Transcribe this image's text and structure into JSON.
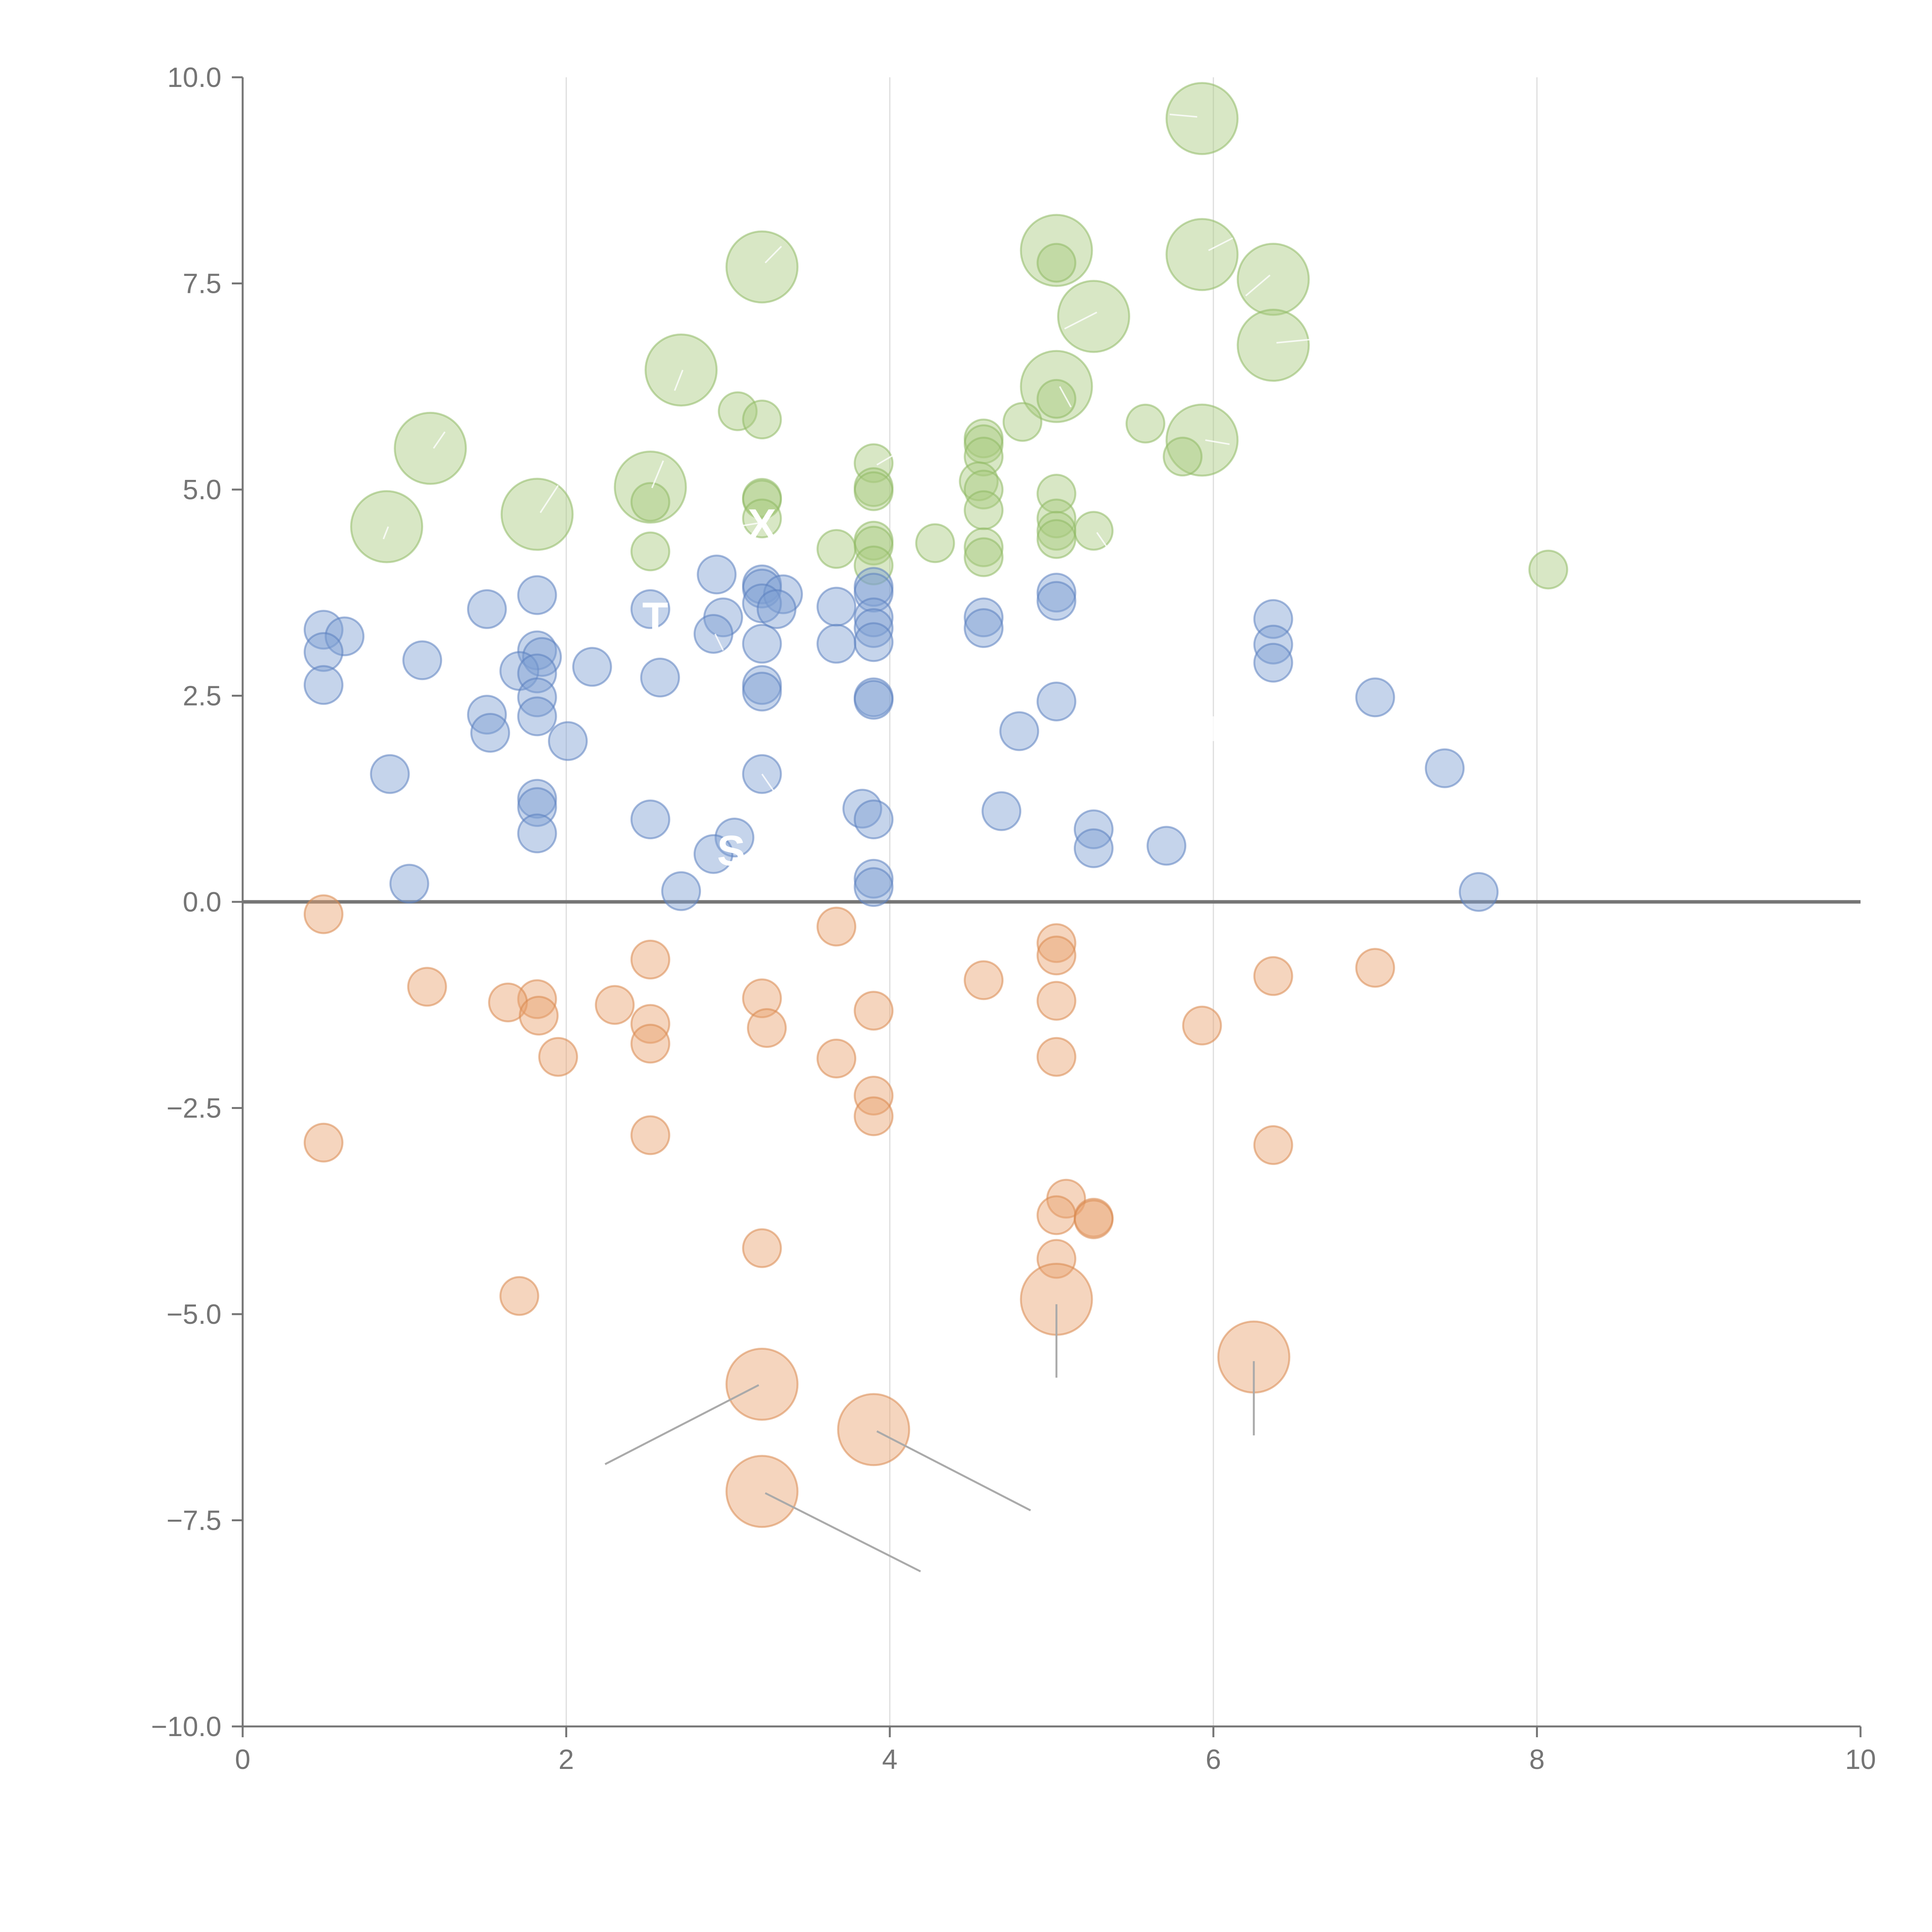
{
  "chart_data": {
    "type": "scatter",
    "title": "",
    "xlabel": "",
    "ylabel": "",
    "xlim": [
      0,
      10
    ],
    "ylim": [
      -10,
      10
    ],
    "x_ticks": [
      "0",
      "2",
      "4",
      "6",
      "8",
      "10"
    ],
    "y_ticks": [
      "−10.0",
      "−7.5",
      "−5.0",
      "−2.5",
      "0.0",
      "2.5",
      "5.0",
      "7.5",
      "10.0"
    ],
    "x_tick_values": [
      0,
      2,
      4,
      6,
      8,
      10
    ],
    "y_tick_values": [
      -10,
      -7.5,
      -5,
      -2.5,
      0,
      2.5,
      5,
      7.5,
      10
    ],
    "vertical_gridlines": [
      2,
      4,
      6,
      8
    ],
    "zero_line": 0,
    "series": [
      {
        "name": "green",
        "color": "#a8c97e",
        "stroke": "#8fb964",
        "points": [
          {
            "x": 5.93,
            "y": 9.5,
            "r": 3
          },
          {
            "x": 5.03,
            "y": 7.9,
            "r": 3
          },
          {
            "x": 5.93,
            "y": 7.85,
            "r": 3
          },
          {
            "x": 3.21,
            "y": 7.7,
            "r": 3
          },
          {
            "x": 6.37,
            "y": 7.55,
            "r": 3
          },
          {
            "x": 5.26,
            "y": 7.1,
            "r": 3
          },
          {
            "x": 6.37,
            "y": 6.75,
            "r": 3
          },
          {
            "x": 2.71,
            "y": 6.45,
            "r": 3
          },
          {
            "x": 5.03,
            "y": 6.25,
            "r": 3
          },
          {
            "x": 5.93,
            "y": 5.6,
            "r": 3
          },
          {
            "x": 1.16,
            "y": 5.5,
            "r": 3
          },
          {
            "x": 2.52,
            "y": 5.03,
            "r": 3
          },
          {
            "x": 1.82,
            "y": 4.7,
            "r": 3
          },
          {
            "x": 0.89,
            "y": 4.55,
            "r": 3
          },
          {
            "x": 5.03,
            "y": 7.75,
            "r": 1
          },
          {
            "x": 3.06,
            "y": 5.95,
            "r": 1
          },
          {
            "x": 3.21,
            "y": 5.85,
            "r": 1
          },
          {
            "x": 5.03,
            "y": 6.1,
            "r": 1
          },
          {
            "x": 5.58,
            "y": 5.8,
            "r": 1
          },
          {
            "x": 4.82,
            "y": 5.82,
            "r": 1
          },
          {
            "x": 4.58,
            "y": 5.62,
            "r": 1
          },
          {
            "x": 4.58,
            "y": 5.55,
            "r": 1
          },
          {
            "x": 4.58,
            "y": 5.4,
            "r": 1
          },
          {
            "x": 5.81,
            "y": 5.4,
            "r": 1
          },
          {
            "x": 3.9,
            "y": 5.32,
            "r": 1
          },
          {
            "x": 4.55,
            "y": 5.1,
            "r": 1
          },
          {
            "x": 3.9,
            "y": 5.03,
            "r": 1
          },
          {
            "x": 3.9,
            "y": 4.98,
            "r": 1
          },
          {
            "x": 4.58,
            "y": 5.0,
            "r": 1
          },
          {
            "x": 3.21,
            "y": 4.9,
            "r": 1
          },
          {
            "x": 3.21,
            "y": 4.88,
            "r": 1
          },
          {
            "x": 5.03,
            "y": 4.95,
            "r": 1
          },
          {
            "x": 2.52,
            "y": 4.85,
            "r": 1
          },
          {
            "x": 4.58,
            "y": 4.75,
            "r": 1
          },
          {
            "x": 3.21,
            "y": 4.65,
            "r": 1
          },
          {
            "x": 5.03,
            "y": 4.65,
            "r": 1
          },
          {
            "x": 5.03,
            "y": 4.5,
            "r": 1
          },
          {
            "x": 5.26,
            "y": 4.5,
            "r": 1
          },
          {
            "x": 5.03,
            "y": 4.4,
            "r": 1
          },
          {
            "x": 3.9,
            "y": 4.38,
            "r": 1
          },
          {
            "x": 3.9,
            "y": 4.32,
            "r": 1
          },
          {
            "x": 4.28,
            "y": 4.35,
            "r": 1
          },
          {
            "x": 3.67,
            "y": 4.28,
            "r": 1
          },
          {
            "x": 4.58,
            "y": 4.3,
            "r": 1
          },
          {
            "x": 2.52,
            "y": 4.25,
            "r": 1
          },
          {
            "x": 4.58,
            "y": 4.18,
            "r": 1
          },
          {
            "x": 3.9,
            "y": 4.08,
            "r": 1
          },
          {
            "x": 8.07,
            "y": 4.03,
            "r": 1
          }
        ]
      },
      {
        "name": "blue",
        "color": "#7e9fd2",
        "stroke": "#5b7fc0",
        "points": [
          {
            "x": 2.93,
            "y": 3.97,
            "r": 1
          },
          {
            "x": 3.21,
            "y": 3.85,
            "r": 1
          },
          {
            "x": 3.21,
            "y": 3.8,
            "r": 1
          },
          {
            "x": 3.9,
            "y": 3.82,
            "r": 1
          },
          {
            "x": 3.9,
            "y": 3.75,
            "r": 1
          },
          {
            "x": 5.03,
            "y": 3.75,
            "r": 1
          },
          {
            "x": 1.82,
            "y": 3.72,
            "r": 1
          },
          {
            "x": 3.34,
            "y": 3.73,
            "r": 1
          },
          {
            "x": 3.21,
            "y": 3.62,
            "r": 1
          },
          {
            "x": 5.03,
            "y": 3.65,
            "r": 1
          },
          {
            "x": 3.67,
            "y": 3.58,
            "r": 1
          },
          {
            "x": 1.51,
            "y": 3.55,
            "r": 1
          },
          {
            "x": 2.52,
            "y": 3.55,
            "r": 1
          },
          {
            "x": 3.3,
            "y": 3.55,
            "r": 1
          },
          {
            "x": 2.97,
            "y": 3.45,
            "r": 1
          },
          {
            "x": 3.9,
            "y": 3.45,
            "r": 1
          },
          {
            "x": 4.58,
            "y": 3.45,
            "r": 1
          },
          {
            "x": 6.37,
            "y": 3.43,
            "r": 1
          },
          {
            "x": 4.58,
            "y": 3.32,
            "r": 1
          },
          {
            "x": 3.9,
            "y": 3.32,
            "r": 1
          },
          {
            "x": 0.5,
            "y": 3.3,
            "r": 1
          },
          {
            "x": 2.91,
            "y": 3.25,
            "r": 1
          },
          {
            "x": 0.63,
            "y": 3.22,
            "r": 1
          },
          {
            "x": 3.9,
            "y": 3.15,
            "r": 1
          },
          {
            "x": 3.21,
            "y": 3.13,
            "r": 1
          },
          {
            "x": 3.67,
            "y": 3.13,
            "r": 1
          },
          {
            "x": 6.37,
            "y": 3.12,
            "r": 1
          },
          {
            "x": 1.82,
            "y": 3.05,
            "r": 1
          },
          {
            "x": 0.5,
            "y": 3.03,
            "r": 1
          },
          {
            "x": 1.85,
            "y": 2.97,
            "r": 1
          },
          {
            "x": 1.11,
            "y": 2.93,
            "r": 1
          },
          {
            "x": 6.37,
            "y": 2.9,
            "r": 1
          },
          {
            "x": 2.16,
            "y": 2.85,
            "r": 1
          },
          {
            "x": 1.71,
            "y": 2.8,
            "r": 1
          },
          {
            "x": 1.82,
            "y": 2.77,
            "r": 1
          },
          {
            "x": 2.58,
            "y": 2.72,
            "r": 1
          },
          {
            "x": 0.5,
            "y": 2.63,
            "r": 1
          },
          {
            "x": 3.21,
            "y": 2.63,
            "r": 1
          },
          {
            "x": 3.21,
            "y": 2.55,
            "r": 1
          },
          {
            "x": 3.9,
            "y": 2.48,
            "r": 1
          },
          {
            "x": 3.9,
            "y": 2.45,
            "r": 1
          },
          {
            "x": 7.0,
            "y": 2.48,
            "r": 1
          },
          {
            "x": 1.82,
            "y": 2.48,
            "r": 1
          },
          {
            "x": 5.03,
            "y": 2.43,
            "r": 1
          },
          {
            "x": 1.51,
            "y": 2.27,
            "r": 1
          },
          {
            "x": 1.82,
            "y": 2.25,
            "r": 1
          },
          {
            "x": 4.8,
            "y": 2.07,
            "r": 1
          },
          {
            "x": 1.53,
            "y": 2.05,
            "r": 1
          },
          {
            "x": 2.01,
            "y": 1.95,
            "r": 1
          },
          {
            "x": 7.43,
            "y": 1.62,
            "r": 1
          },
          {
            "x": 0.91,
            "y": 1.55,
            "r": 1
          },
          {
            "x": 3.21,
            "y": 1.55,
            "r": 1
          },
          {
            "x": 1.82,
            "y": 1.25,
            "r": 1
          },
          {
            "x": 1.82,
            "y": 1.15,
            "r": 1
          },
          {
            "x": 3.83,
            "y": 1.13,
            "r": 1
          },
          {
            "x": 4.69,
            "y": 1.1,
            "r": 1
          },
          {
            "x": 2.52,
            "y": 1.0,
            "r": 1
          },
          {
            "x": 3.9,
            "y": 1.0,
            "r": 1
          },
          {
            "x": 5.26,
            "y": 0.88,
            "r": 1
          },
          {
            "x": 1.82,
            "y": 0.83,
            "r": 1
          },
          {
            "x": 3.04,
            "y": 0.78,
            "r": 1
          },
          {
            "x": 5.71,
            "y": 0.68,
            "r": 1
          },
          {
            "x": 5.26,
            "y": 0.65,
            "r": 1
          },
          {
            "x": 2.91,
            "y": 0.58,
            "r": 1
          },
          {
            "x": 3.9,
            "y": 0.28,
            "r": 1
          },
          {
            "x": 1.03,
            "y": 0.22,
            "r": 1
          },
          {
            "x": 3.9,
            "y": 0.18,
            "r": 1
          },
          {
            "x": 2.71,
            "y": 0.13,
            "r": 1
          },
          {
            "x": 7.64,
            "y": 0.12,
            "r": 1
          }
        ]
      },
      {
        "name": "orange",
        "color": "#e8a26e",
        "stroke": "#d9884f",
        "points": [
          {
            "x": 0.5,
            "y": -0.15,
            "r": 1
          },
          {
            "x": 3.67,
            "y": -0.3,
            "r": 1
          },
          {
            "x": 5.03,
            "y": -0.5,
            "r": 1
          },
          {
            "x": 5.03,
            "y": -0.65,
            "r": 1
          },
          {
            "x": 2.52,
            "y": -0.7,
            "r": 1
          },
          {
            "x": 7.0,
            "y": -0.8,
            "r": 1
          },
          {
            "x": 6.37,
            "y": -0.9,
            "r": 1
          },
          {
            "x": 4.58,
            "y": -0.95,
            "r": 1
          },
          {
            "x": 1.14,
            "y": -1.03,
            "r": 1
          },
          {
            "x": 3.21,
            "y": -1.17,
            "r": 1
          },
          {
            "x": 1.82,
            "y": -1.18,
            "r": 1
          },
          {
            "x": 5.03,
            "y": -1.2,
            "r": 1
          },
          {
            "x": 1.64,
            "y": -1.22,
            "r": 1
          },
          {
            "x": 2.3,
            "y": -1.25,
            "r": 1
          },
          {
            "x": 3.9,
            "y": -1.32,
            "r": 1
          },
          {
            "x": 1.83,
            "y": -1.38,
            "r": 1
          },
          {
            "x": 2.52,
            "y": -1.48,
            "r": 1
          },
          {
            "x": 5.93,
            "y": -1.5,
            "r": 1
          },
          {
            "x": 3.24,
            "y": -1.53,
            "r": 1
          },
          {
            "x": 2.52,
            "y": -1.72,
            "r": 1
          },
          {
            "x": 1.95,
            "y": -1.88,
            "r": 1
          },
          {
            "x": 5.03,
            "y": -1.88,
            "r": 1
          },
          {
            "x": 3.67,
            "y": -1.9,
            "r": 1
          },
          {
            "x": 3.9,
            "y": -2.35,
            "r": 1
          },
          {
            "x": 3.9,
            "y": -2.6,
            "r": 1
          },
          {
            "x": 2.52,
            "y": -2.83,
            "r": 1
          },
          {
            "x": 0.5,
            "y": -2.92,
            "r": 1
          },
          {
            "x": 6.37,
            "y": -2.95,
            "r": 1
          },
          {
            "x": 5.09,
            "y": -3.6,
            "r": 1
          },
          {
            "x": 5.03,
            "y": -3.8,
            "r": 1
          },
          {
            "x": 5.26,
            "y": -3.83,
            "r": 1
          },
          {
            "x": 5.26,
            "y": -3.85,
            "r": 1
          },
          {
            "x": 3.21,
            "y": -4.2,
            "r": 1
          },
          {
            "x": 5.03,
            "y": -4.33,
            "r": 1
          },
          {
            "x": 1.71,
            "y": -4.78,
            "r": 1
          },
          {
            "x": 5.03,
            "y": -4.82,
            "r": 3
          },
          {
            "x": 6.25,
            "y": -5.52,
            "r": 3
          },
          {
            "x": 3.21,
            "y": -5.85,
            "r": 3
          },
          {
            "x": 3.9,
            "y": -6.4,
            "r": 3
          },
          {
            "x": 3.21,
            "y": -7.15,
            "r": 3
          }
        ]
      }
    ],
    "leader_lines": [
      {
        "from": [
          3.19,
          -5.86
        ],
        "to": [
          2.24,
          -6.82
        ]
      },
      {
        "from": [
          3.92,
          -6.42
        ],
        "to": [
          4.87,
          -7.38
        ]
      },
      {
        "from": [
          3.23,
          -7.17
        ],
        "to": [
          4.19,
          -8.12
        ]
      },
      {
        "from": [
          5.03,
          -4.88
        ],
        "to": [
          5.03,
          -5.77
        ]
      },
      {
        "from": [
          6.25,
          -5.57
        ],
        "to": [
          6.25,
          -6.47
        ]
      }
    ],
    "white_leaders": [
      {
        "from": [
          5.9,
          9.52
        ],
        "to": [
          5.73,
          9.55
        ]
      },
      {
        "from": [
          5.97,
          7.9
        ],
        "to": [
          6.12,
          8.05
        ]
      },
      {
        "from": [
          3.23,
          7.75
        ],
        "to": [
          3.33,
          7.95
        ]
      },
      {
        "from": [
          6.35,
          7.6
        ],
        "to": [
          6.2,
          7.35
        ]
      },
      {
        "from": [
          5.28,
          7.15
        ],
        "to": [
          5.08,
          6.95
        ]
      },
      {
        "from": [
          6.39,
          6.78
        ],
        "to": [
          6.6,
          6.82
        ]
      },
      {
        "from": [
          2.72,
          6.45
        ],
        "to": [
          2.67,
          6.2
        ]
      },
      {
        "from": [
          5.05,
          6.25
        ],
        "to": [
          5.12,
          6.0
        ]
      },
      {
        "from": [
          5.95,
          5.6
        ],
        "to": [
          6.1,
          5.55
        ]
      },
      {
        "from": [
          1.18,
          5.5
        ],
        "to": [
          1.25,
          5.7
        ]
      },
      {
        "from": [
          2.53,
          5.02
        ],
        "to": [
          2.6,
          5.35
        ]
      },
      {
        "from": [
          1.84,
          4.72
        ],
        "to": [
          1.95,
          5.05
        ]
      },
      {
        "from": [
          0.9,
          4.55
        ],
        "to": [
          0.87,
          4.4
        ]
      },
      {
        "from": [
          3.21,
          4.6
        ],
        "to": [
          3.05,
          4.55
        ]
      },
      {
        "from": [
          3.92,
          5.3
        ],
        "to": [
          4.05,
          5.45
        ]
      },
      {
        "from": [
          5.28,
          4.48
        ],
        "to": [
          5.35,
          4.28
        ]
      },
      {
        "from": [
          3.21,
          1.55
        ],
        "to": [
          3.28,
          1.35
        ]
      },
      {
        "from": [
          2.92,
          3.25
        ],
        "to": [
          2.97,
          3.05
        ]
      },
      {
        "from": [
          6.0,
          2.25
        ],
        "to": [
          6.0,
          1.95
        ]
      }
    ],
    "annotations": [
      "X",
      "T",
      "S"
    ],
    "annotation_positions": [
      {
        "label": "X",
        "x": 3.21,
        "y": 4.58
      },
      {
        "label": "T",
        "x": 2.55,
        "y": 3.45
      },
      {
        "label": "S",
        "x": 3.02,
        "y": 0.62
      }
    ]
  }
}
